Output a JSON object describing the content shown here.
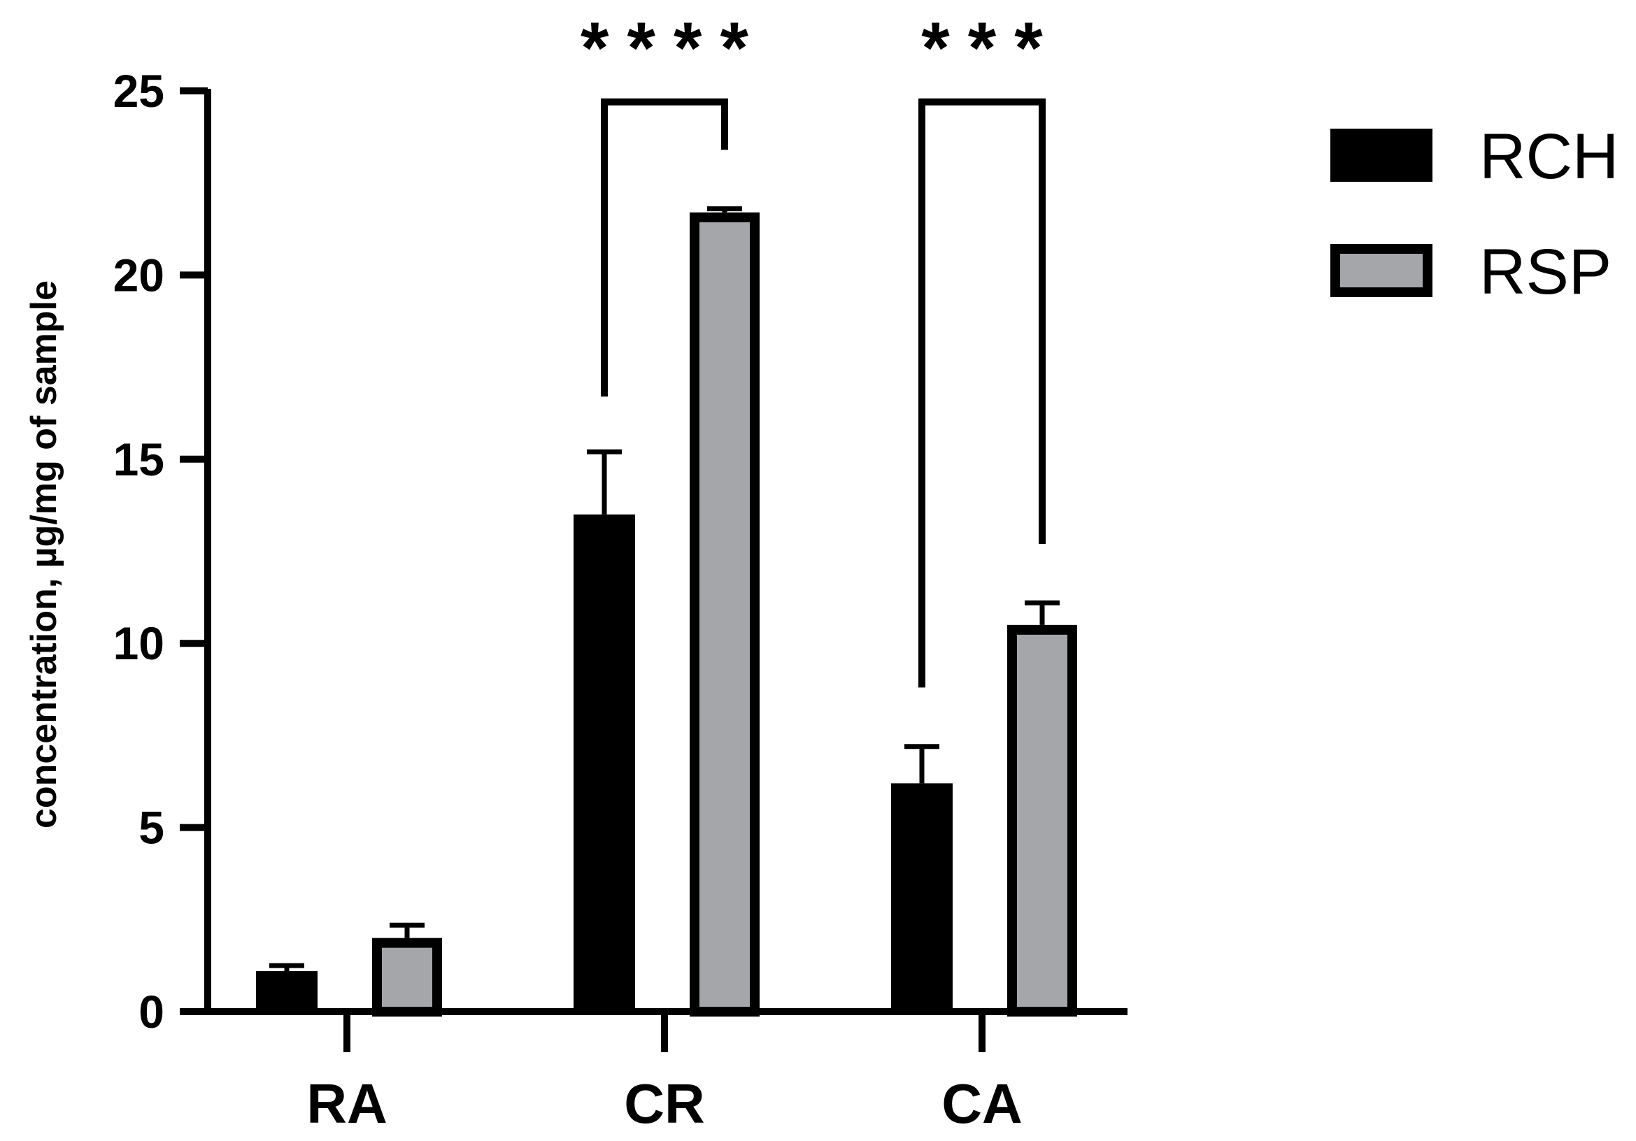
{
  "chart_data": {
    "type": "bar",
    "categories": [
      "RA",
      "CR",
      "CA"
    ],
    "ylabel": "concentration, µg/mg of sample",
    "xlabel": "",
    "ylim": [
      0,
      25
    ],
    "yticks": [
      0,
      5,
      10,
      15,
      20,
      25
    ],
    "legend_position": "top-right",
    "grid": false,
    "series": [
      {
        "name": "RCH",
        "color": "#000000",
        "values": [
          1.1,
          13.5,
          6.2
        ],
        "errors": [
          0.15,
          1.7,
          1.0
        ]
      },
      {
        "name": "RSP",
        "color": "#a5a6aa",
        "values": [
          2.0,
          21.7,
          10.5
        ],
        "errors": [
          0.35,
          0.1,
          0.6
        ]
      }
    ],
    "significance": [
      {
        "category": "CR",
        "label": "****",
        "left_level": 16.7,
        "right_level": 23.4,
        "top": 24.7
      },
      {
        "category": "CA",
        "label": "***",
        "left_level": 8.8,
        "right_level": 12.7,
        "top": 24.7
      }
    ]
  }
}
